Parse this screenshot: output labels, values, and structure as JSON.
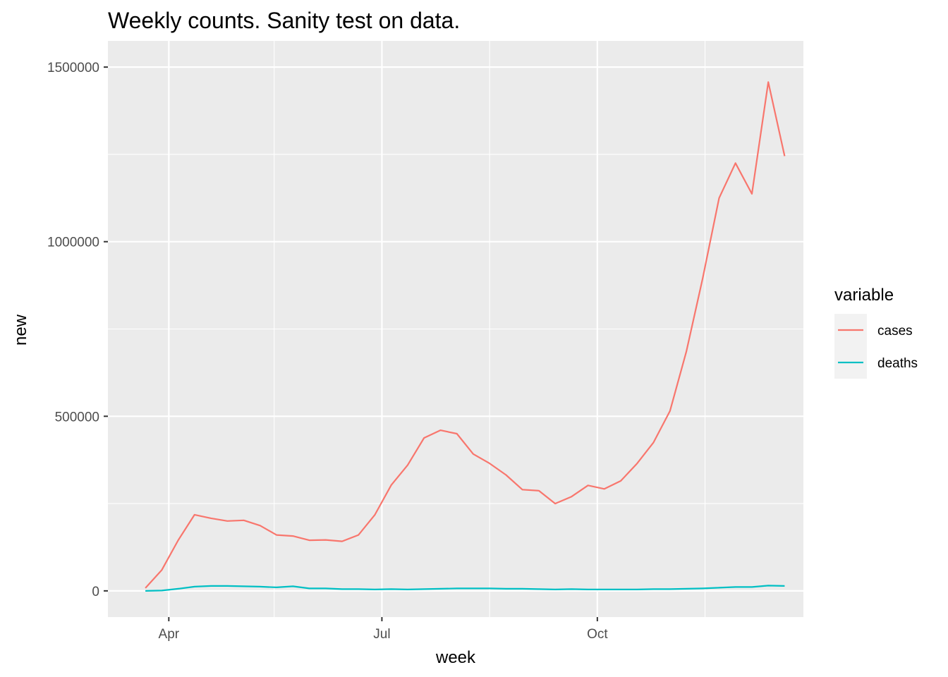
{
  "chart_data": {
    "type": "line",
    "title": "Weekly counts. Sanity test on data.",
    "xlabel": "week",
    "ylabel": "new",
    "x_tick_labels": [
      {
        "label": "Apr",
        "date": "2020-04-01"
      },
      {
        "label": "Jul",
        "date": "2020-07-01"
      },
      {
        "label": "Oct",
        "date": "2020-10-01"
      }
    ],
    "x_minor_ticks": [
      "2020-05-16",
      "2020-08-16",
      "2020-11-16"
    ],
    "y_tick_labels": [
      "0",
      "500000",
      "1000000",
      "1500000"
    ],
    "y_ticks": [
      0,
      500000,
      1000000,
      1500000
    ],
    "y_minor_ticks": [
      250000,
      750000,
      1250000
    ],
    "xlim": [
      "2020-03-06",
      "2020-12-28"
    ],
    "ylim": [
      -75000,
      1575000
    ],
    "grid": true,
    "legend": {
      "title": "variable",
      "position": "right"
    },
    "x": [
      "2020-03-22",
      "2020-03-29",
      "2020-04-05",
      "2020-04-12",
      "2020-04-19",
      "2020-04-26",
      "2020-05-03",
      "2020-05-10",
      "2020-05-17",
      "2020-05-24",
      "2020-05-31",
      "2020-06-07",
      "2020-06-14",
      "2020-06-21",
      "2020-06-28",
      "2020-07-05",
      "2020-07-12",
      "2020-07-19",
      "2020-07-26",
      "2020-08-02",
      "2020-08-09",
      "2020-08-16",
      "2020-08-23",
      "2020-08-30",
      "2020-09-06",
      "2020-09-13",
      "2020-09-20",
      "2020-09-27",
      "2020-10-04",
      "2020-10-11",
      "2020-10-18",
      "2020-10-25",
      "2020-11-01",
      "2020-11-08",
      "2020-11-15",
      "2020-11-22",
      "2020-11-29",
      "2020-12-06",
      "2020-12-13",
      "2020-12-20"
    ],
    "series": [
      {
        "name": "cases",
        "color": "#F8766D",
        "values": [
          8000,
          60000,
          145000,
          218000,
          208000,
          200000,
          202000,
          187000,
          160000,
          157000,
          145000,
          146000,
          142000,
          160000,
          218000,
          303000,
          360000,
          438000,
          460000,
          450000,
          392000,
          365000,
          332000,
          290000,
          287000,
          250000,
          270000,
          302000,
          292000,
          315000,
          365000,
          425000,
          515000,
          685000,
          895000,
          1125000,
          1225000,
          1137000,
          1457000,
          1245000
        ]
      },
      {
        "name": "deaths",
        "color": "#00BFC4",
        "values": [
          0,
          1000,
          6000,
          12000,
          14000,
          14000,
          13000,
          12000,
          10000,
          13000,
          7000,
          7000,
          5000,
          5000,
          4000,
          5000,
          4000,
          5000,
          6000,
          7000,
          7000,
          7000,
          6000,
          6000,
          5000,
          4000,
          5000,
          4000,
          4000,
          4000,
          4000,
          5000,
          5000,
          6000,
          7000,
          9000,
          11000,
          11000,
          15000,
          14000
        ]
      }
    ]
  }
}
